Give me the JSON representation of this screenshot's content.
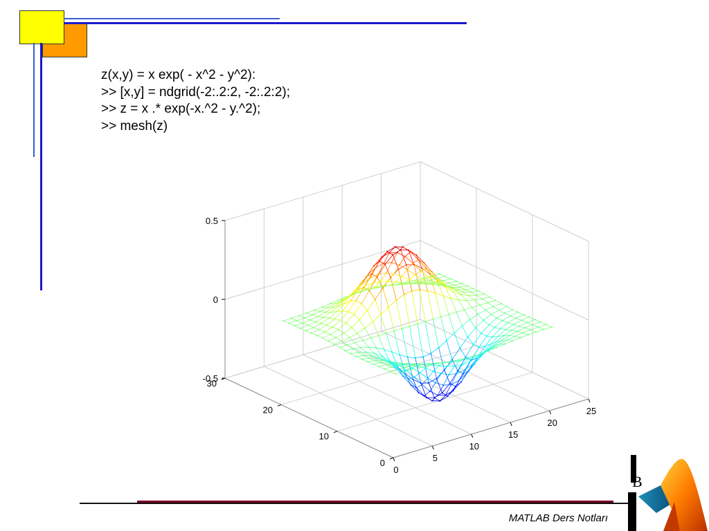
{
  "slide": {
    "code_lines": [
      "z(x,y) = x exp( - x^2 - y^2):",
      ">> [x,y] = ndgrid(-2:.2:2, -2:.2:2);",
      ">> z = x .* exp(-x.^2 - y.^2);",
      ">> mesh(z)"
    ],
    "footer": "MATLAB Ders Notları",
    "logo_letter": "B",
    "colors": {
      "yellow_square": "#ffff00",
      "orange_square": "#ff9a00",
      "blue_lines": "#1a1acc",
      "footer_line": "#7a0020"
    }
  },
  "chart_data": {
    "type": "mesh3d",
    "function": "z = x .* exp(-x.^2 - y.^2)",
    "grid": {
      "x": [
        -2,
        2,
        0.2
      ],
      "y": [
        -2,
        2,
        0.2
      ],
      "size": 21
    },
    "xlim": [
      0,
      25
    ],
    "ylim": [
      0,
      30
    ],
    "zlim": [
      -0.5,
      0.5
    ],
    "x_ticks": [
      "0",
      "5",
      "10",
      "15",
      "20",
      "25"
    ],
    "y_ticks": [
      "0",
      "10",
      "20",
      "30"
    ],
    "z_ticks": [
      "-0.5",
      "0",
      "0.5"
    ],
    "grid_on": true,
    "colormap": "jet"
  }
}
